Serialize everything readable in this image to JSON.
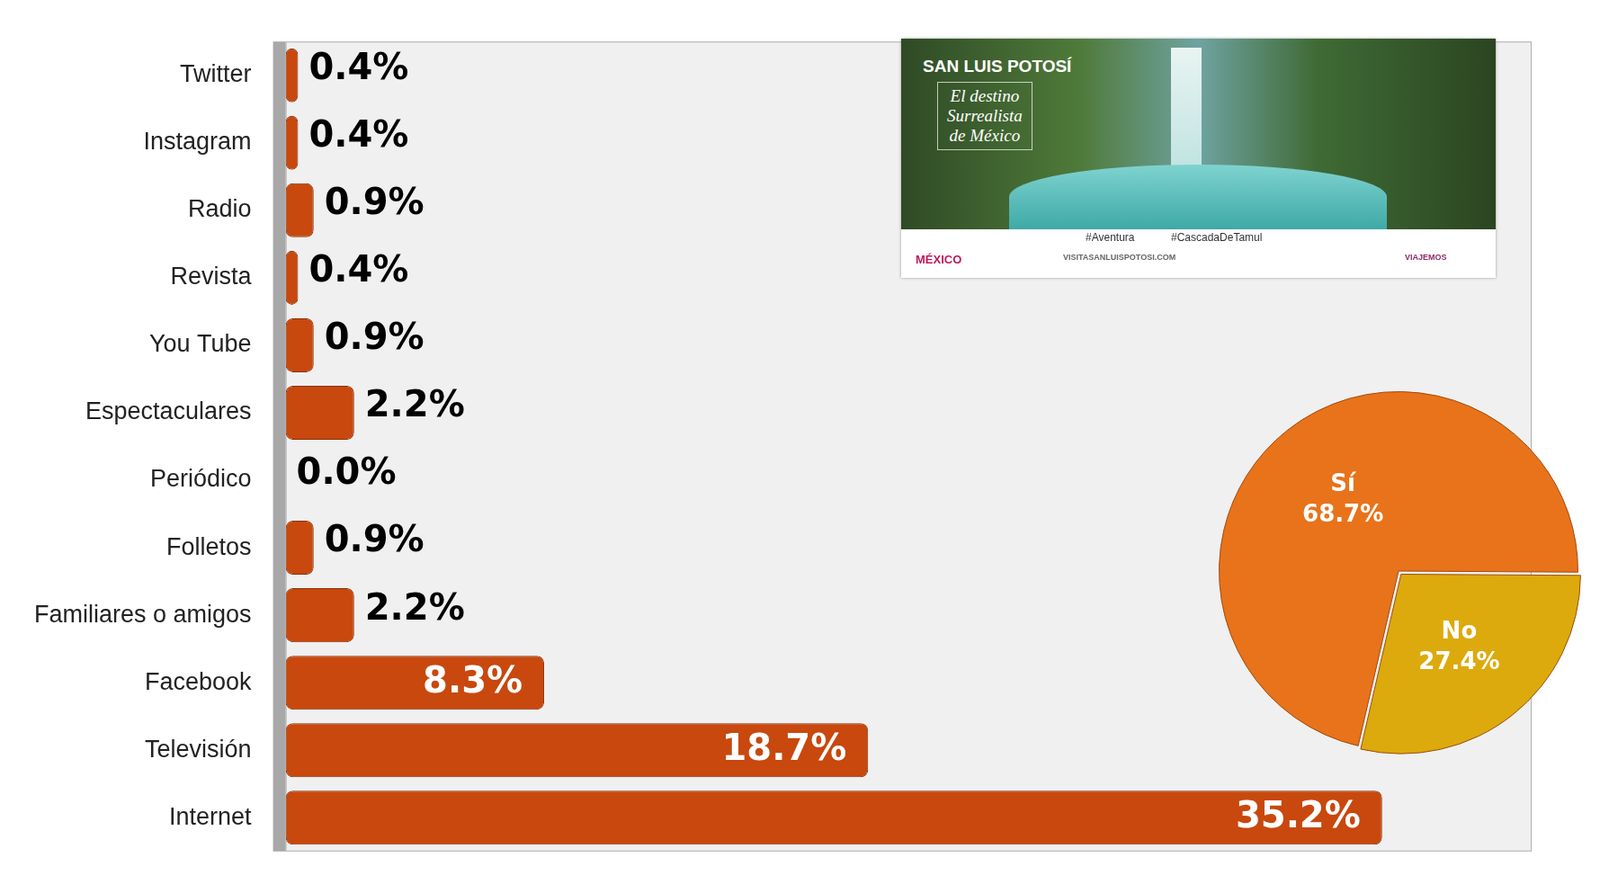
{
  "chart_data": [
    {
      "type": "bar",
      "orientation": "horizontal",
      "categories": [
        "Twitter",
        "Instagram",
        "Radio",
        "Revista",
        "You Tube",
        "Espectaculares",
        "Periódico",
        "Folletos",
        "Familiares o amigos",
        "Facebook",
        "Televisión",
        "Internet"
      ],
      "values": [
        0.4,
        0.4,
        0.9,
        0.4,
        0.9,
        2.2,
        0.0,
        0.9,
        2.2,
        8.3,
        18.7,
        35.2
      ],
      "value_labels": [
        "0.4%",
        "0.4%",
        "0.9%",
        "0.4%",
        "0.9%",
        "2.2%",
        "0.0%",
        "0.9%",
        "2.2%",
        "8.3%",
        "18.7%",
        "35.2%"
      ],
      "color": "#c8480e",
      "xlim": [
        0,
        40
      ],
      "grid": false,
      "data_labels": true,
      "tick_labels": "y"
    },
    {
      "type": "pie",
      "categories": [
        "Sí",
        "No"
      ],
      "values": [
        68.7,
        27.4
      ],
      "value_labels": [
        "68.7%",
        "27.4%"
      ],
      "colors": [
        "#e8731a",
        "#dcaa0c"
      ],
      "data_labels": true
    }
  ],
  "banner": {
    "title": "SAN LUIS POTOSÍ",
    "slogan": [
      "El destino",
      "Surrealista",
      "de México"
    ],
    "tags": [
      "#Aventura",
      "#CascadaDeTamul"
    ],
    "footer": [
      "MÉXICO",
      "VISITASANLUISPOTOSI.COM",
      "VIAJEMOS"
    ]
  }
}
